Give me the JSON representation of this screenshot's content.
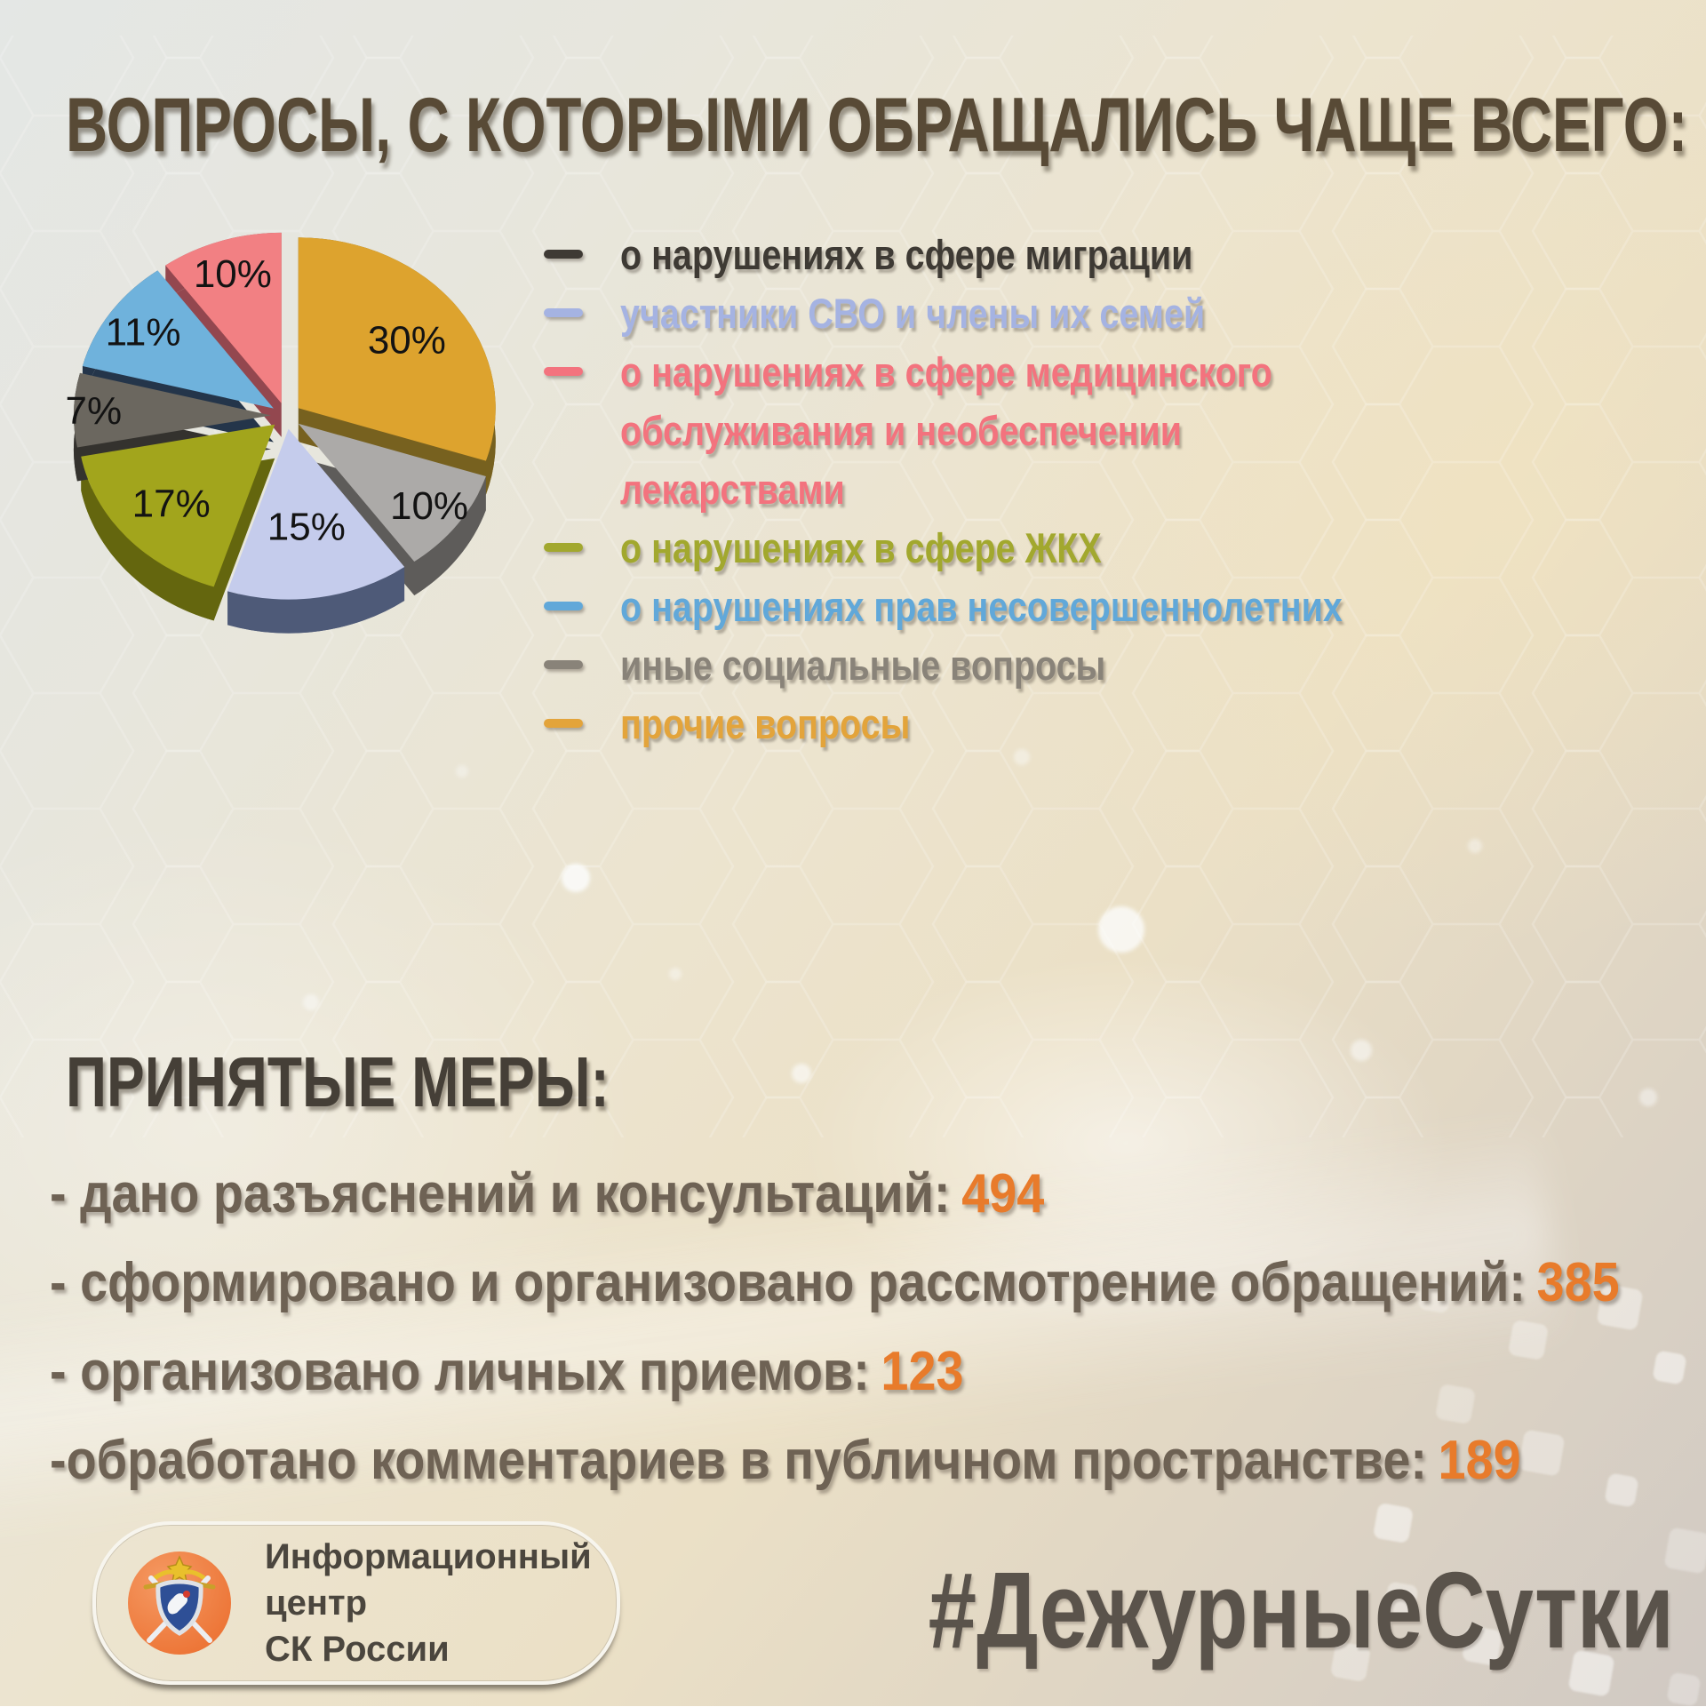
{
  "title": "ВОПРОСЫ, С КОТОРЫМИ ОБРАЩАЛИСЬ ЧАЩЕ ВСЕГО:",
  "chart_data": {
    "type": "pie",
    "title": "Вопросы, с которыми обращались чаще всего",
    "legend_position": "right",
    "start_angle_deg": 0,
    "slices": [
      {
        "name": "прочие вопросы",
        "value": 30,
        "color": "#dda32e",
        "side": "#77611f",
        "labelFactor": 0.68
      },
      {
        "name": "иные социальные вопросы",
        "value": 10,
        "color": "#acaaa8",
        "side": "#5e5c5a",
        "labelFactor": 0.82
      },
      {
        "name": "участники СВО и члены их семей",
        "value": 15,
        "color": "#c5ccec",
        "side": "#4e5a78",
        "labelFactor": 0.58
      },
      {
        "name": "о нарушениях в сфере ЖКХ",
        "value": 17,
        "color": "#a2a51c",
        "side": "#64660e",
        "labelFactor": 0.7
      },
      {
        "name": "о нарушениях в сфере миграции",
        "value": 7,
        "color": "#6b675f",
        "side": "#34322e",
        "labelFactor": 0.9
      },
      {
        "name": "о нарушениях прав несовершеннолетних",
        "value": 11,
        "color": "#6fb2dc",
        "side": "#24354a",
        "labelFactor": 0.8
      },
      {
        "name": "о нарушениях в сфере мед. обслуживания",
        "value": 10,
        "color": "#f28083",
        "side": "#93474f",
        "labelFactor": 0.8
      }
    ],
    "label_suffix": "%"
  },
  "legend": {
    "items": [
      {
        "label": "о нарушениях в сфере миграции",
        "color": "#3e3a34"
      },
      {
        "label": "участники СВО и члены их семей",
        "color": "#a5b3e2"
      },
      {
        "label": "о нарушениях в сфере медицинского\nобслуживания и необеспечении\nлекарствами",
        "color": "#f3737e"
      },
      {
        "label": "о нарушениях в сфере ЖКХ",
        "color": "#a2a82e"
      },
      {
        "label": "о нарушениях прав несовершеннолетних",
        "color": "#61a8d9"
      },
      {
        "label": "иные социальные вопросы",
        "color": "#898379"
      },
      {
        "label": "прочие вопросы",
        "color": "#e3a43b"
      }
    ]
  },
  "measures": {
    "heading": "ПРИНЯТЫЕ МЕРЫ:",
    "items": [
      {
        "text": "- дано разъяснений и консультаций:",
        "value": "494"
      },
      {
        "text": "- сформировано и организовано рассмотрение обращений:",
        "value": "385"
      },
      {
        "text": "- организовано личных приемов:",
        "value": "123"
      },
      {
        "text": "-обработано комментариев в публичном пространстве:",
        "value": "189"
      }
    ],
    "accent_color": "#e87b2b"
  },
  "footer": {
    "logo_line1": "Информационный центр",
    "logo_line2": "СК России",
    "hashtag": "#ДежурныеСутки"
  }
}
